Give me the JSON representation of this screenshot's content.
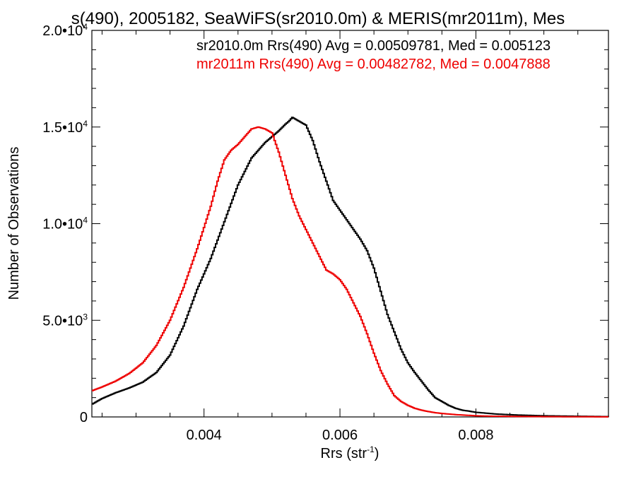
{
  "chart_data": {
    "type": "line",
    "title": "s(490), 2005182, SeaWiFS(sr2010.0m) & MERIS(mr2011m), Mes",
    "xlabel": "Rrs (str",
    "xlabel_sup": "-1",
    "xlabel_close": ")",
    "ylabel": "Number of Observations",
    "xlim": [
      0.00235,
      0.00995
    ],
    "ylim": [
      0,
      20000
    ],
    "x_ticks": [
      {
        "value": 0.004,
        "label": "0.004"
      },
      {
        "value": 0.006,
        "label": "0.006"
      },
      {
        "value": 0.008,
        "label": "0.008"
      }
    ],
    "y_ticks": [
      {
        "value": 0,
        "label": "0",
        "sup": ""
      },
      {
        "value": 5000,
        "label": "5.0•10",
        "sup": "3"
      },
      {
        "value": 10000,
        "label": "1.0•10",
        "sup": "4"
      },
      {
        "value": 15000,
        "label": "1.5•10",
        "sup": "4"
      },
      {
        "value": 20000,
        "label": "2.0•10",
        "sup": "4"
      }
    ],
    "grid": false,
    "legend_position": "top-right",
    "series": [
      {
        "name": "sr2010.0m Rrs(490) Avg = 0.00509781, Med = 0.005123",
        "color": "#000000",
        "x": [
          0.00235,
          0.0025,
          0.0027,
          0.0029,
          0.0031,
          0.0033,
          0.0035,
          0.0037,
          0.0039,
          0.0041,
          0.0043,
          0.0045,
          0.0047,
          0.0049,
          0.0051,
          0.0052,
          0.00525,
          0.0053,
          0.0054,
          0.0055,
          0.0056,
          0.0057,
          0.0058,
          0.0059,
          0.006,
          0.0061,
          0.0062,
          0.0063,
          0.0064,
          0.0065,
          0.0066,
          0.0067,
          0.0068,
          0.0069,
          0.007,
          0.0071,
          0.0072,
          0.0073,
          0.0074,
          0.0075,
          0.0076,
          0.0077,
          0.0078,
          0.0079,
          0.008,
          0.0081,
          0.0083,
          0.0086,
          0.009,
          0.0094,
          0.00995
        ],
        "y": [
          650,
          950,
          1250,
          1500,
          1800,
          2300,
          3200,
          4700,
          6600,
          8200,
          10100,
          12000,
          13400,
          14200,
          14800,
          15150,
          15300,
          15500,
          15300,
          15100,
          14300,
          13200,
          12200,
          11200,
          10700,
          10200,
          9700,
          9200,
          8600,
          7700,
          6500,
          5300,
          4400,
          3500,
          2800,
          2300,
          1850,
          1400,
          1000,
          800,
          600,
          450,
          350,
          300,
          240,
          210,
          150,
          100,
          60,
          40,
          15
        ]
      },
      {
        "name": "mr2011m Rrs(490) Avg = 0.00482782, Med = 0.0047888",
        "color": "#ee0000",
        "x": [
          0.00235,
          0.0025,
          0.0027,
          0.0029,
          0.0031,
          0.0033,
          0.0035,
          0.0037,
          0.0039,
          0.0041,
          0.0042,
          0.0043,
          0.0044,
          0.0045,
          0.0046,
          0.0047,
          0.0048,
          0.0049,
          0.005,
          0.0051,
          0.0052,
          0.0053,
          0.0054,
          0.0055,
          0.0056,
          0.0057,
          0.0058,
          0.0059,
          0.006,
          0.0061,
          0.0062,
          0.0063,
          0.0064,
          0.0065,
          0.0066,
          0.0067,
          0.0068,
          0.0069,
          0.007,
          0.0071,
          0.0072,
          0.0073,
          0.0074,
          0.0075,
          0.0076,
          0.0077,
          0.0078,
          0.0079,
          0.008,
          0.0082,
          0.0086,
          0.009,
          0.0094,
          0.00995
        ],
        "y": [
          1350,
          1550,
          1850,
          2250,
          2800,
          3700,
          5000,
          6700,
          8700,
          10900,
          12200,
          13300,
          13800,
          14100,
          14500,
          14900,
          15000,
          14900,
          14700,
          13700,
          12500,
          11300,
          10400,
          9700,
          9000,
          8300,
          7600,
          7400,
          7100,
          6600,
          5900,
          5200,
          4300,
          3300,
          2400,
          1700,
          1100,
          800,
          600,
          450,
          350,
          280,
          220,
          180,
          150,
          120,
          100,
          80,
          60,
          40,
          25,
          15,
          10,
          5
        ]
      }
    ]
  }
}
